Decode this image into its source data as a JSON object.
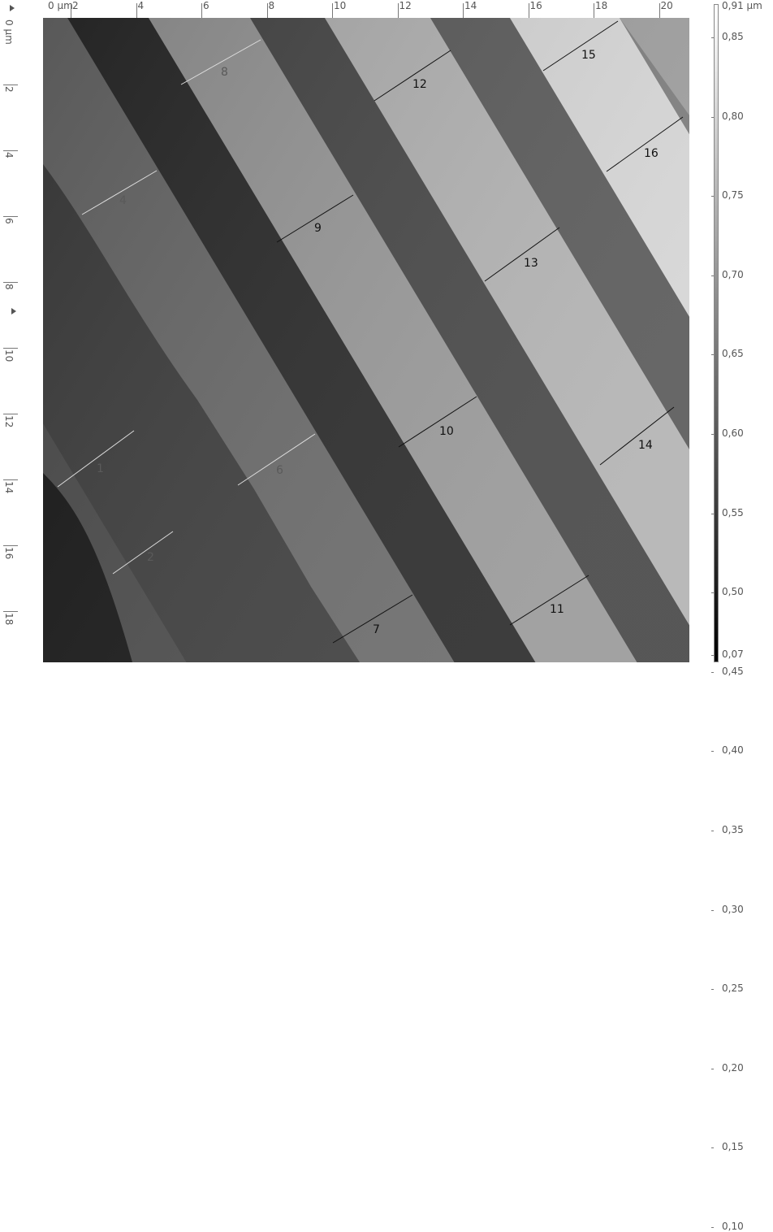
{
  "x_axis": {
    "unit_label": "0 µm",
    "ticks": [
      "2",
      "4",
      "6",
      "8",
      "10",
      "12",
      "14",
      "16",
      "18",
      "20"
    ]
  },
  "y_axis": {
    "unit_label": "0 µm",
    "ticks": [
      "2",
      "4",
      "6",
      "8",
      "10",
      "12",
      "14",
      "16",
      "18"
    ]
  },
  "color_scale": {
    "top_label": "0,91 µm",
    "labels": [
      "0,85",
      "0,80",
      "0,75",
      "0,70",
      "0,65",
      "0,60",
      "0,55",
      "0,50",
      "0,45",
      "0,40",
      "0,35",
      "0,30",
      "0,25",
      "0,20",
      "0,15",
      "0,10",
      "0,07"
    ],
    "gradient_top": "#ffffff",
    "gradient_bottom": "#000000"
  },
  "profiles": {
    "p1": "1",
    "p2": "2",
    "p4": "4",
    "p6": "6",
    "p7": "7",
    "p8": "8",
    "p9": "9",
    "p10": "10",
    "p11": "11",
    "p12": "12",
    "p13": "13",
    "p14": "14",
    "p15": "15",
    "p16": "16"
  },
  "colors": {
    "label_dark": "#111111",
    "label_light": "#5a5a5a",
    "line_dark": "#111111",
    "line_light": "#dddddd"
  }
}
